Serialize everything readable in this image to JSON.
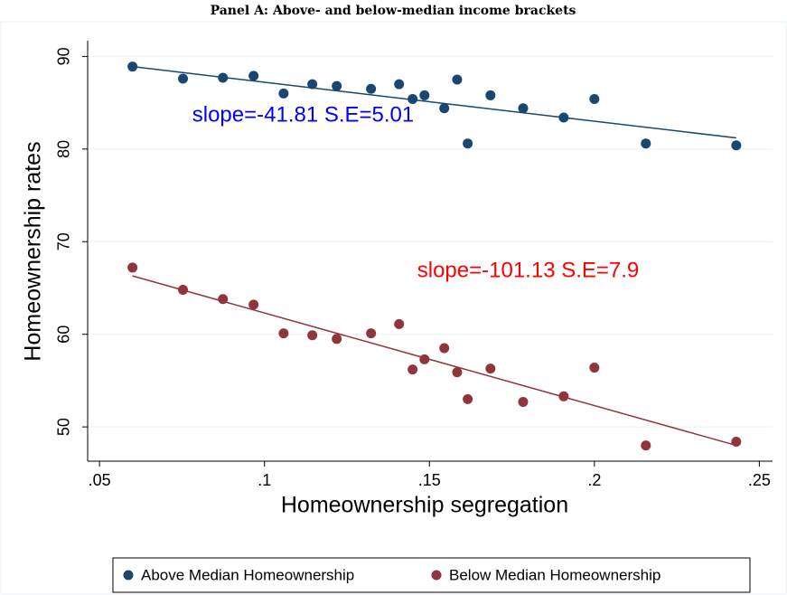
{
  "chart_data": {
    "type": "scatter",
    "title": "Panel A: Above- and below-median income brackets",
    "x_label": "Homeownership segregation",
    "y_label": "Homeownership rates",
    "xlim": [
      0.0464,
      0.254
    ],
    "ylim": [
      46.3,
      91.7
    ],
    "xticks": [
      {
        "value": 0.05,
        "label": ".05"
      },
      {
        "value": 0.1,
        "label": ".1"
      },
      {
        "value": 0.15,
        "label": ".15"
      },
      {
        "value": 0.2,
        "label": ".2"
      },
      {
        "value": 0.25,
        "label": ".25"
      }
    ],
    "yticks": [
      50,
      60,
      70,
      80,
      90
    ],
    "grid": true,
    "legend": "bottom",
    "series": [
      {
        "name": "Above Median Homeownership",
        "color": "#1a476f",
        "x": [
          0.06,
          0.0753,
          0.0874,
          0.0967,
          0.1058,
          0.1145,
          0.1219,
          0.1323,
          0.1408,
          0.1449,
          0.1485,
          0.1545,
          0.1584,
          0.1616,
          0.1685,
          0.1784,
          0.1907,
          0.2,
          0.2156,
          0.243
        ],
        "values": [
          88.9,
          87.6,
          87.7,
          87.9,
          86.0,
          87.0,
          86.8,
          86.5,
          87.0,
          85.4,
          85.8,
          84.4,
          87.5,
          80.6,
          85.8,
          84.4,
          83.4,
          85.4,
          80.6,
          80.4
        ]
      },
      {
        "name": "Below Median Homeownership",
        "color": "#90353b",
        "x": [
          0.06,
          0.0753,
          0.0874,
          0.0967,
          0.1058,
          0.1145,
          0.1219,
          0.1323,
          0.1408,
          0.1449,
          0.1485,
          0.1545,
          0.1584,
          0.1616,
          0.1685,
          0.1784,
          0.1907,
          0.2,
          0.2156,
          0.243
        ],
        "values": [
          67.2,
          64.8,
          63.8,
          63.2,
          60.1,
          59.9,
          59.5,
          60.1,
          61.1,
          56.2,
          57.3,
          58.5,
          55.9,
          53.0,
          56.3,
          52.7,
          53.3,
          56.4,
          48.0,
          48.4
        ]
      }
    ],
    "fit_lines": [
      {
        "color": "#1a476f",
        "x": [
          0.06,
          0.243
        ],
        "values": [
          88.9,
          81.2
        ]
      },
      {
        "color": "#90353b",
        "x": [
          0.06,
          0.243
        ],
        "values": [
          66.3,
          48.0
        ]
      }
    ],
    "annotations": [
      {
        "text": "slope=-41.81 S.E=5.01",
        "x": 0.0781,
        "y": 83.6,
        "color": "#0000ff"
      },
      {
        "text": "slope=-101.13 S.E=7.9",
        "x": 0.1463,
        "y": 66.8,
        "color": "#ff0000"
      }
    ]
  }
}
